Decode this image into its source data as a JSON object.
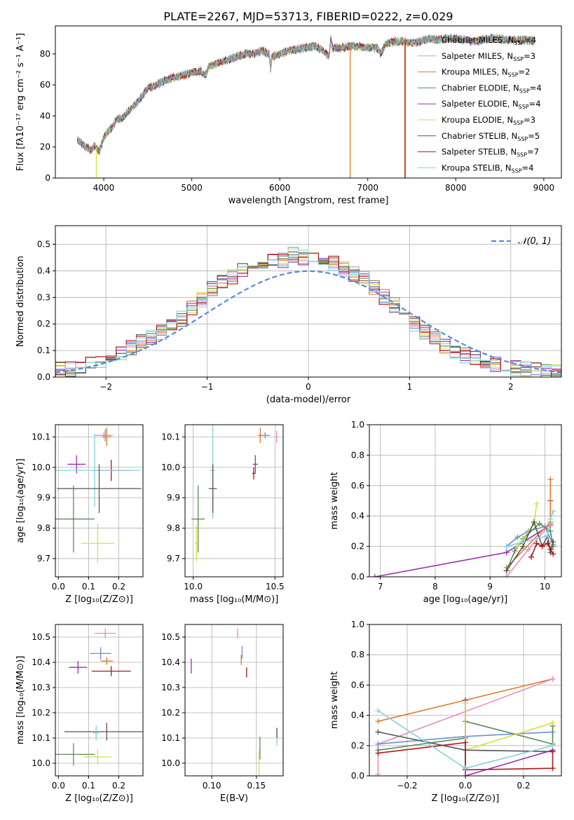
{
  "figure_title": "PLATE=2267, MJD=53713, FIBERID=0222, z=0.029",
  "colors": {
    "Chabrier MILES": "#6a8fd6",
    "Salpeter MILES": "#e58fc0",
    "Kroupa MILES": "#e07a26",
    "Chabrier ELODIE": "#5a8a5a",
    "Salpeter ELODIE": "#9a2fb0",
    "Kroupa ELODIE": "#d4e040",
    "Chabrier STELIB": "#555555",
    "Salpeter STELIB": "#b01818",
    "Kroupa STELIB": "#7fd6dc",
    "gauss": "#5b8ad6"
  },
  "chart_data": [
    {
      "type": "line",
      "title": "PLATE=2267, MJD=53713, FIBERID=0222, z=0.029",
      "xlabel": "wavelength [Angstrom, rest frame]",
      "ylabel": "Flux [fλ10⁻¹⁷ erg cm⁻² s⁻¹ A⁻¹]",
      "xlim": [
        3450,
        9200
      ],
      "ylim": [
        0,
        98
      ],
      "xticks": [
        4000,
        5000,
        6000,
        7000,
        8000,
        9000
      ],
      "yticks": [
        0,
        20,
        40,
        60,
        80
      ],
      "legend_loc": "top-right",
      "legend": [
        "Chabrier MILES, N_SSP=4",
        "Salpeter MILES, N_SSP=3",
        "Kroupa MILES, N_SSP=2",
        "Chabrier ELODIE, N_SSP=4",
        "Salpeter ELODIE, N_SSP=4",
        "Kroupa ELODIE, N_SSP=3",
        "Chabrier STELIB, N_SSP=5",
        "Salpeter STELIB, N_SSP=7",
        "Kroupa STELIB, N_SSP=4"
      ],
      "spectrum": {
        "x": [
          3700,
          3750,
          3800,
          3850,
          3900,
          3950,
          4000,
          4050,
          4100,
          4150,
          4200,
          4300,
          4400,
          4500,
          4600,
          4700,
          4800,
          4900,
          5000,
          5100,
          5150,
          5200,
          5300,
          5400,
          5500,
          5600,
          5700,
          5800,
          5880,
          5895,
          5910,
          6000,
          6100,
          6200,
          6300,
          6400,
          6500,
          6560,
          6580,
          6600,
          6700,
          6800,
          6900,
          7000,
          7100,
          7150,
          7200,
          7300,
          7400,
          7500,
          7600,
          7700,
          7800,
          7900,
          8000,
          8200,
          8400,
          8600,
          8800,
          8900
        ],
        "y": [
          25,
          22,
          20,
          18,
          21,
          17,
          26,
          30,
          33,
          38,
          38,
          44,
          50,
          58,
          60,
          63,
          65,
          66,
          68,
          69,
          66,
          72,
          74,
          76,
          78,
          80,
          80,
          82,
          80,
          70,
          78,
          80,
          82,
          83,
          84,
          85,
          82,
          78,
          90,
          84,
          84,
          85,
          85,
          84,
          84,
          80,
          86,
          88,
          88,
          87,
          88,
          90,
          89,
          90,
          90,
          88,
          90,
          89,
          89,
          88
        ]
      },
      "drops": [
        {
          "name": "Kroupa ELODIE",
          "x": 3915,
          "to": 0
        },
        {
          "name": "Kroupa ELODIE",
          "x": 6800,
          "to": 0
        },
        {
          "name": "Kroupa MILES",
          "x": 6800,
          "to": 0
        },
        {
          "name": "Kroupa MILES",
          "x": 7420,
          "to": 0
        },
        {
          "name": "Salpeter STELIB",
          "x": 7425,
          "to": 0
        }
      ]
    },
    {
      "type": "area",
      "xlabel": "(data-model)/error",
      "ylabel": "Normed distribution",
      "xlim": [
        -2.5,
        2.5
      ],
      "ylim": [
        0,
        0.57
      ],
      "xticks": [
        -2,
        -1,
        0,
        1,
        2
      ],
      "xtick_labels": [
        "−2",
        "−1",
        "0",
        "1",
        "2"
      ],
      "yticks": [
        0,
        0.1,
        0.2,
        0.3,
        0.4,
        0.5
      ],
      "ytick_labels": [
        "0.0",
        "0.1",
        "0.2",
        "0.3",
        "0.4",
        "0.5"
      ],
      "legend": "𝒩(0, 1)",
      "legend_loc": "top-right",
      "bin_width": 0.1,
      "bin_start": -2.5,
      "base": [
        0.03,
        0.03,
        0.04,
        0.05,
        0.06,
        0.08,
        0.09,
        0.11,
        0.13,
        0.15,
        0.17,
        0.2,
        0.22,
        0.26,
        0.29,
        0.33,
        0.36,
        0.38,
        0.4,
        0.41,
        0.43,
        0.45,
        0.44,
        0.46,
        0.45,
        0.44,
        0.42,
        0.43,
        0.41,
        0.39,
        0.37,
        0.34,
        0.3,
        0.27,
        0.24,
        0.2,
        0.17,
        0.15,
        0.12,
        0.1,
        0.08,
        0.07,
        0.06,
        0.05,
        0.04,
        0.035,
        0.03,
        0.025,
        0.02,
        0.02
      ],
      "gauss": {
        "mu": 0,
        "sigma": 1
      }
    },
    {
      "type": "scatter",
      "xlabel": "Z [log₁₀(Z/Z⊙)]",
      "ylabel": "age  [log₁₀(age/yr)]",
      "xlim": [
        -0.01,
        0.28
      ],
      "ylim": [
        9.64,
        10.14
      ],
      "xticks": [
        0.0,
        0.1,
        0.2
      ],
      "xtick_labels": [
        "0.0",
        "0.1",
        "0.2"
      ],
      "yticks": [
        9.7,
        9.8,
        9.9,
        10.0,
        10.1
      ],
      "ytick_labels": [
        "9.7",
        "9.8",
        "9.9",
        "10.0",
        "10.1"
      ],
      "points": [
        {
          "name": "Chabrier MILES",
          "x": 0.155,
          "y": 10.105,
          "xerr": 0.02,
          "yerr": 0.02
        },
        {
          "name": "Salpeter MILES",
          "x": 0.15,
          "y": 10.105,
          "xerr": 0.03,
          "yerr": 0.01
        },
        {
          "name": "Kroupa MILES",
          "x": 0.16,
          "y": 10.1,
          "xerr": 0.015,
          "yerr": 0.03
        },
        {
          "name": "Salpeter ELODIE",
          "x": 0.06,
          "y": 10.01,
          "xerr": 0.03,
          "yerr": 0.03
        },
        {
          "name": "Salpeter STELIB",
          "x": 0.175,
          "y": 9.99,
          "xerr": 0.065,
          "yerr": 0.035
        },
        {
          "name": "Kroupa STELIB",
          "x": 0.12,
          "y": 9.99,
          "xerr": 0.15,
          "yerr": 0.12
        },
        {
          "name": "Chabrier STELIB",
          "x": 0.135,
          "y": 9.93,
          "xerr": 0.14,
          "yerr": 0.08
        },
        {
          "name": "Chabrier ELODIE",
          "x": 0.05,
          "y": 9.83,
          "xerr": 0.07,
          "yerr": 0.11
        },
        {
          "name": "Kroupa ELODIE",
          "x": 0.13,
          "y": 9.75,
          "xerr": 0.055,
          "yerr": 0.065
        }
      ]
    },
    {
      "type": "scatter",
      "xlabel": "mass [log₁₀(M/M⊙)]",
      "ylabel": "",
      "xlim": [
        9.95,
        10.55
      ],
      "ylim": [
        9.64,
        10.14
      ],
      "xticks": [
        10.0,
        10.5
      ],
      "xtick_labels": [
        "10.0",
        "10.5"
      ],
      "yticks": [
        9.7,
        9.8,
        9.9,
        10.0,
        10.1
      ],
      "ytick_labels": [
        "9.7",
        "9.8",
        "9.9",
        "10.0",
        "10.1"
      ],
      "points": [
        {
          "name": "Chabrier MILES",
          "x": 10.44,
          "y": 10.105,
          "xerr": 0.03,
          "yerr": 0.01
        },
        {
          "name": "Salpeter MILES",
          "x": 10.51,
          "y": 10.1,
          "xerr": 0.005,
          "yerr": 0.02
        },
        {
          "name": "Kroupa MILES",
          "x": 10.41,
          "y": 10.105,
          "xerr": 0.015,
          "yerr": 0.025
        },
        {
          "name": "Salpeter ELODIE",
          "x": 10.38,
          "y": 10.01,
          "xerr": 0.015,
          "yerr": 0.03
        },
        {
          "name": "Salpeter STELIB",
          "x": 10.37,
          "y": 9.98,
          "xerr": 0.01,
          "yerr": 0.02
        },
        {
          "name": "Kroupa STELIB",
          "x": 10.12,
          "y": 9.99,
          "xerr": 0.015,
          "yerr": 0.16
        },
        {
          "name": "Chabrier STELIB",
          "x": 10.12,
          "y": 9.93,
          "xerr": 0.025,
          "yerr": 0.08
        },
        {
          "name": "Chabrier ELODIE",
          "x": 10.03,
          "y": 9.83,
          "xerr": 0.04,
          "yerr": 0.11
        },
        {
          "name": "Kroupa ELODIE",
          "x": 10.02,
          "y": 9.75,
          "xerr": 0.01,
          "yerr": 0.06
        }
      ]
    },
    {
      "type": "line",
      "xlabel": "age  [log₁₀(age/yr)]",
      "ylabel": "mass weight",
      "xlim": [
        6.8,
        10.3
      ],
      "ylim": [
        0,
        1
      ],
      "xticks": [
        7,
        8,
        9,
        10
      ],
      "xtick_labels": [
        "7",
        "8",
        "9",
        "10"
      ],
      "yticks": [
        0,
        0.2,
        0.4,
        0.6,
        0.8,
        1.0
      ],
      "ytick_labels": [
        "0.0",
        "0.2",
        "0.4",
        "0.6",
        "0.8",
        "1.0"
      ],
      "series": [
        {
          "name": "Salpeter ELODIE",
          "x": [
            6.9,
            9.3,
            10.1,
            10.1
          ],
          "y": [
            0.0,
            0.16,
            0.34,
            0.5
          ]
        },
        {
          "name": "Chabrier MILES",
          "x": [
            9.3,
            9.5,
            9.7,
            10.0,
            10.15
          ],
          "y": [
            0.2,
            0.26,
            0.3,
            0.33,
            0.21
          ]
        },
        {
          "name": "Salpeter MILES",
          "x": [
            9.3,
            9.7,
            10.1
          ],
          "y": [
            0.0,
            0.18,
            0.35
          ]
        },
        {
          "name": "Kroupa MILES",
          "x": [
            9.3,
            10.1,
            10.1
          ],
          "y": [
            0.06,
            0.36,
            0.64
          ]
        },
        {
          "name": "Chabrier ELODIE",
          "x": [
            9.3,
            9.45,
            9.6,
            9.9,
            10.1,
            10.15
          ],
          "y": [
            0.04,
            0.17,
            0.25,
            0.35,
            0.3,
            0.2
          ]
        },
        {
          "name": "Kroupa ELODIE",
          "x": [
            9.5,
            9.8,
            9.85
          ],
          "y": [
            0.2,
            0.35,
            0.48
          ]
        },
        {
          "name": "Chabrier STELIB",
          "x": [
            9.3,
            9.6,
            9.8,
            9.95,
            10.05,
            10.1,
            10.15
          ],
          "y": [
            0.04,
            0.2,
            0.36,
            0.2,
            0.27,
            0.16,
            0.23
          ]
        },
        {
          "name": "Salpeter STELIB",
          "x": [
            9.75,
            9.85,
            9.95,
            10.05,
            10.1,
            10.15
          ],
          "y": [
            0.13,
            0.22,
            0.2,
            0.22,
            0.18,
            0.15
          ]
        },
        {
          "name": "Kroupa STELIB",
          "x": [
            9.3,
            10.05,
            10.1,
            10.15
          ],
          "y": [
            0.2,
            0.27,
            0.38,
            0.43
          ]
        }
      ]
    },
    {
      "type": "scatter",
      "xlabel": "Z [log₁₀(Z/Z⊙)]",
      "ylabel": "mass [log₁₀(M/M⊙)]",
      "xlim": [
        -0.01,
        0.28
      ],
      "ylim": [
        9.95,
        10.55
      ],
      "xticks": [
        0.0,
        0.1,
        0.2
      ],
      "xtick_labels": [
        "0.0",
        "0.1",
        "0.2"
      ],
      "yticks": [
        10.0,
        10.1,
        10.2,
        10.3,
        10.4,
        10.5
      ],
      "ytick_labels": [
        "10.0",
        "10.1",
        "10.2",
        "10.3",
        "10.4",
        "10.5"
      ],
      "points": [
        {
          "name": "Salpeter MILES",
          "x": 0.155,
          "y": 10.515,
          "xerr": 0.035,
          "yerr": 0.02
        },
        {
          "name": "Chabrier MILES",
          "x": 0.14,
          "y": 10.435,
          "xerr": 0.035,
          "yerr": 0.025
        },
        {
          "name": "Kroupa MILES",
          "x": 0.16,
          "y": 10.405,
          "xerr": 0.02,
          "yerr": 0.015
        },
        {
          "name": "Salpeter ELODIE",
          "x": 0.065,
          "y": 10.38,
          "xerr": 0.03,
          "yerr": 0.025
        },
        {
          "name": "Salpeter STELIB",
          "x": 0.175,
          "y": 10.365,
          "xerr": 0.065,
          "yerr": 0.02
        },
        {
          "name": "Chabrier STELIB",
          "x": 0.16,
          "y": 10.125,
          "xerr": 0.14,
          "yerr": 0.035
        },
        {
          "name": "Kroupa STELIB",
          "x": 0.125,
          "y": 10.12,
          "xerr": 0.01,
          "yerr": 0.03
        },
        {
          "name": "Chabrier ELODIE",
          "x": 0.05,
          "y": 10.035,
          "xerr": 0.07,
          "yerr": 0.045
        },
        {
          "name": "Kroupa ELODIE",
          "x": 0.13,
          "y": 10.025,
          "xerr": 0.045,
          "yerr": 0.03
        }
      ]
    },
    {
      "type": "scatter",
      "xlabel": "E(B-V)",
      "ylabel": "",
      "xlim": [
        0.07,
        0.18
      ],
      "ylim": [
        9.95,
        10.55
      ],
      "xticks": [
        0.1,
        0.15
      ],
      "xtick_labels": [
        "0.10",
        "0.15"
      ],
      "yticks": [
        10.0,
        10.1,
        10.2,
        10.3,
        10.4,
        10.5
      ],
      "ytick_labels": [
        "10.0",
        "10.1",
        "10.2",
        "10.3",
        "10.4",
        "10.5"
      ],
      "points": [
        {
          "name": "Salpeter MILES",
          "x": 0.129,
          "y": 10.515,
          "xerr": 0.0,
          "yerr": 0.02
        },
        {
          "name": "Chabrier MILES",
          "x": 0.134,
          "y": 10.44,
          "xerr": 0.0,
          "yerr": 0.025
        },
        {
          "name": "Kroupa MILES",
          "x": 0.133,
          "y": 10.41,
          "xerr": 0.0,
          "yerr": 0.02
        },
        {
          "name": "Salpeter ELODIE",
          "x": 0.077,
          "y": 10.385,
          "xerr": 0.0,
          "yerr": 0.03
        },
        {
          "name": "Salpeter STELIB",
          "x": 0.139,
          "y": 10.36,
          "xerr": 0.0,
          "yerr": 0.02
        },
        {
          "name": "Kroupa STELIB",
          "x": 0.173,
          "y": 10.105,
          "xerr": 0.0,
          "yerr": 0.035
        },
        {
          "name": "Chabrier STELIB",
          "x": 0.173,
          "y": 10.12,
          "xerr": 0.0,
          "yerr": 0.02
        },
        {
          "name": "Chabrier ELODIE",
          "x": 0.154,
          "y": 10.06,
          "xerr": 0.0,
          "yerr": 0.045
        },
        {
          "name": "Kroupa ELODIE",
          "x": 0.153,
          "y": 10.0,
          "xerr": 0.0,
          "yerr": 0.05
        }
      ]
    },
    {
      "type": "line",
      "xlabel": "Z [log₁₀(Z/Z⊙)]",
      "ylabel": "mass weight",
      "xlim": [
        -0.33,
        0.33
      ],
      "ylim": [
        0,
        1
      ],
      "xticks": [
        -0.2,
        0.0,
        0.2
      ],
      "xtick_labels": [
        "−0.2",
        "0.0",
        "0.2"
      ],
      "yticks": [
        0,
        0.2,
        0.4,
        0.6,
        0.8,
        1.0
      ],
      "ytick_labels": [
        "0.0",
        "0.2",
        "0.4",
        "0.6",
        "0.8",
        "1.0"
      ],
      "series": [
        {
          "name": "Kroupa MILES",
          "x": [
            -0.3,
            0.0,
            0.3
          ],
          "y": [
            0.36,
            0.5,
            0.64
          ]
        },
        {
          "name": "Salpeter MILES",
          "x": [
            -0.3,
            -0.3,
            0.3
          ],
          "y": [
            0.01,
            0.21,
            0.64
          ]
        },
        {
          "name": "Chabrier MILES",
          "x": [
            -0.3,
            0.0,
            0.3
          ],
          "y": [
            0.21,
            0.26,
            0.29
          ]
        },
        {
          "name": "Chabrier ELODIE",
          "x": [
            -0.3,
            0.0,
            0.0,
            0.3,
            0.3
          ],
          "y": [
            0.17,
            0.25,
            0.36,
            0.21,
            0.33
          ]
        },
        {
          "name": "Salpeter ELODIE",
          "x": [
            0.0,
            0.0,
            0.3
          ],
          "y": [
            0.5,
            0.0,
            0.17
          ]
        },
        {
          "name": "Kroupa ELODIE",
          "x": [
            0.0,
            0.0,
            0.3
          ],
          "y": [
            0.48,
            0.17,
            0.35
          ]
        },
        {
          "name": "Chabrier STELIB",
          "x": [
            -0.3,
            0.0,
            0.3
          ],
          "y": [
            0.29,
            0.17,
            0.16
          ]
        },
        {
          "name": "Salpeter STELIB",
          "x": [
            -0.3,
            0.0,
            0.0,
            0.3,
            0.3
          ],
          "y": [
            0.15,
            0.22,
            0.04,
            0.05,
            0.16
          ]
        },
        {
          "name": "Kroupa STELIB",
          "x": [
            -0.3,
            0.0,
            0.3
          ],
          "y": [
            0.43,
            0.05,
            0.2
          ]
        }
      ]
    }
  ]
}
